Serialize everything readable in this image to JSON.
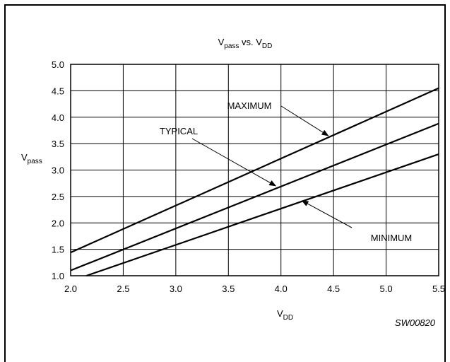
{
  "chart_data": {
    "type": "line",
    "title": {
      "main": "V",
      "sub": "pass",
      "mid": " vs. V",
      "sub2": "DD"
    },
    "xlabel": {
      "main": "V",
      "sub": "DD"
    },
    "ylabel": {
      "main": "V",
      "sub": "pass"
    },
    "xlim": [
      2.0,
      5.5
    ],
    "ylim": [
      1.0,
      5.0
    ],
    "xticks": [
      "2.0",
      "2.5",
      "3.0",
      "3.5",
      "4.0",
      "4.5",
      "5.0",
      "5.5"
    ],
    "yticks": [
      "1.0",
      "1.5",
      "2.0",
      "2.5",
      "3.0",
      "3.5",
      "4.0",
      "4.5",
      "5.0"
    ],
    "grid": true,
    "series": [
      {
        "name": "MAXIMUM",
        "x": [
          2.0,
          5.5
        ],
        "y": [
          1.44,
          4.55
        ]
      },
      {
        "name": "TYPICAL",
        "x": [
          2.0,
          5.5
        ],
        "y": [
          1.1,
          3.88
        ]
      },
      {
        "name": "MINIMUM",
        "x": [
          2.15,
          5.5
        ],
        "y": [
          1.0,
          3.3
        ]
      }
    ],
    "annotations": [
      {
        "text": "MAXIMUM",
        "arrow_to": [
          4.45,
          3.65
        ]
      },
      {
        "text": "TYPICAL",
        "arrow_to": [
          3.95,
          2.7
        ]
      },
      {
        "text": "MINIMUM",
        "arrow_to": [
          4.2,
          2.42
        ]
      }
    ],
    "figure_code": "SW00820"
  }
}
